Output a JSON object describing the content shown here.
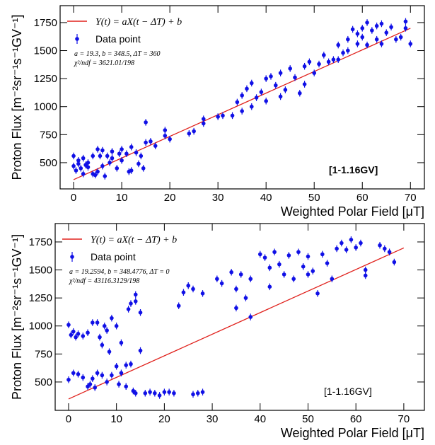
{
  "chart_data": [
    {
      "type": "scatter",
      "label": "[1-1.16GV]",
      "label_bold": true,
      "x_label": "Weighted Polar Field [μT]",
      "y_label": "Proton Flux [m⁻²sr⁻¹s⁻¹GV⁻¹]",
      "annotations": [
        "a = 19.3, b = 348.5, ΔT = 360",
        "χ²/ndf = 3621.01/198"
      ],
      "xlim": [
        -2.8,
        72.9
      ],
      "ylim": [
        266,
        1901
      ],
      "xticks": [
        0,
        10,
        20,
        30,
        40,
        50,
        60,
        70
      ],
      "yticks": [
        500,
        750,
        1000,
        1250,
        1500,
        1750
      ],
      "series": [
        {
          "name": "Y(t) = aX(t − ΔT) + b",
          "kind": "line",
          "color": "#e0201b",
          "x": [
            0,
            70
          ],
          "values": [
            348.5,
            1699.5
          ]
        },
        {
          "name": "Data point",
          "kind": "points",
          "color": "#1010e6",
          "yerr": 30,
          "x": [
            0,
            0,
            0.5,
            1,
            1,
            1.5,
            2,
            2,
            2.5,
            3,
            3,
            4,
            4,
            4.5,
            5,
            5,
            5.5,
            6,
            6,
            6.5,
            7,
            7.5,
            8,
            8,
            9,
            9.5,
            10,
            10,
            11,
            11.5,
            12,
            12,
            13,
            13.5,
            14,
            14.5,
            15,
            15,
            16,
            17,
            19,
            19,
            20,
            24,
            25,
            27,
            27,
            30,
            31,
            33,
            34,
            35,
            35,
            36,
            37,
            37,
            38,
            39,
            40,
            40,
            41,
            42,
            43,
            43,
            44,
            45,
            46,
            47,
            48,
            48,
            49,
            50,
            51,
            52,
            53,
            54,
            55,
            55,
            56,
            57,
            57,
            58,
            59,
            59,
            60,
            60,
            61,
            61,
            62,
            63,
            63,
            64,
            64,
            65,
            66,
            67,
            68,
            69,
            69,
            70
          ],
          "values": [
            560,
            470,
            430,
            490,
            520,
            450,
            540,
            400,
            480,
            460,
            500,
            560,
            400,
            390,
            420,
            620,
            560,
            610,
            470,
            380,
            560,
            500,
            540,
            600,
            450,
            580,
            520,
            620,
            580,
            420,
            640,
            430,
            590,
            490,
            560,
            450,
            860,
            680,
            690,
            650,
            740,
            790,
            710,
            760,
            780,
            890,
            850,
            910,
            920,
            920,
            1040,
            960,
            1100,
            1160,
            1210,
            1000,
            1080,
            1130,
            1050,
            1250,
            1270,
            1190,
            1300,
            1090,
            1150,
            1340,
            1260,
            1120,
            1360,
            1200,
            1400,
            1300,
            1380,
            1460,
            1400,
            1420,
            1550,
            1420,
            1480,
            1600,
            1500,
            1690,
            1650,
            1560,
            1700,
            1620,
            1750,
            1550,
            1680,
            1720,
            1600,
            1740,
            1560,
            1660,
            1710,
            1600,
            1620,
            1760,
            1700,
            1560
          ]
        }
      ]
    },
    {
      "type": "scatter",
      "label": "[1-1.16GV]",
      "label_bold": false,
      "x_label": "Weighted Polar Field [μT]",
      "y_label": "Proton Flux [m⁻²sr⁻¹s⁻¹GV⁻¹]",
      "annotations": [
        "a = 19.2594, b = 348.4776, ΔT = 0",
        "χ²/ndf = 43116.3129/198"
      ],
      "xlim": [
        -2.8,
        74.3
      ],
      "ylim": [
        247,
        1914
      ],
      "xticks": [
        0,
        10,
        20,
        30,
        40,
        50,
        60,
        70
      ],
      "yticks": [
        500,
        750,
        1000,
        1250,
        1500,
        1750
      ],
      "series": [
        {
          "name": "Y(t) = aX(t − ΔT) + b",
          "kind": "line",
          "color": "#e0201b",
          "x": [
            0,
            70
          ],
          "values": [
            348.4776,
            1696.6356
          ]
        },
        {
          "name": "Data point",
          "kind": "points",
          "color": "#1010e6",
          "yerr": 30,
          "x": [
            0,
            0,
            0.5,
            1,
            1,
            1.5,
            2,
            2,
            3,
            3,
            4,
            4,
            4.5,
            5,
            5,
            5.5,
            6,
            6,
            6.5,
            7,
            7,
            7.5,
            8,
            8,
            8.5,
            9,
            9,
            10,
            10,
            10.5,
            11,
            11,
            12,
            12,
            12.5,
            13,
            13,
            13.5,
            14,
            14,
            14,
            15,
            15,
            16,
            17,
            18,
            19,
            20,
            21,
            22,
            23,
            24,
            25,
            26,
            26,
            27,
            28,
            28,
            31,
            32,
            34,
            35,
            35,
            36,
            37,
            38,
            38,
            40,
            41,
            42,
            42,
            43,
            44,
            45,
            46,
            47,
            48,
            49,
            50,
            50,
            51,
            52,
            53,
            54,
            55,
            56,
            57,
            58,
            59,
            60,
            61,
            62,
            62,
            65,
            66,
            67,
            68
          ],
          "values": [
            1010,
            520,
            920,
            580,
            950,
            900,
            930,
            570,
            910,
            540,
            940,
            460,
            480,
            530,
            1030,
            450,
            1030,
            580,
            900,
            830,
            560,
            1000,
            960,
            500,
            770,
            1070,
            560,
            1000,
            640,
            480,
            580,
            850,
            650,
            460,
            1150,
            1200,
            660,
            420,
            1280,
            1220,
            400,
            1120,
            780,
            400,
            410,
            400,
            380,
            410,
            410,
            400,
            1180,
            1300,
            1360,
            1330,
            390,
            400,
            410,
            1290,
            1420,
            1380,
            1480,
            1330,
            1160,
            1460,
            1250,
            1420,
            1080,
            1640,
            1610,
            1520,
            1350,
            1660,
            1550,
            1460,
            1630,
            1420,
            1660,
            1530,
            1620,
            1460,
            1490,
            1290,
            1640,
            1560,
            1420,
            1690,
            1740,
            1680,
            1770,
            1700,
            1740,
            1500,
            1450,
            1720,
            1690,
            1660,
            1570
          ]
        }
      ]
    }
  ]
}
